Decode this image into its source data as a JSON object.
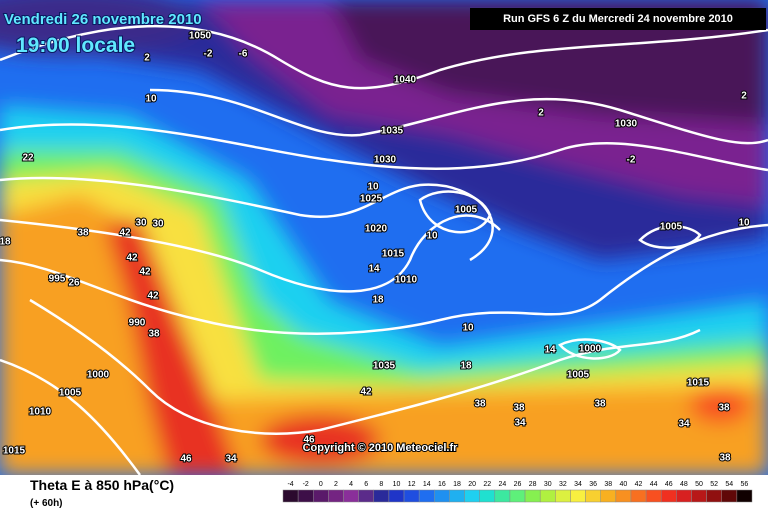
{
  "header": {
    "date": "Vendredi 26 novembre 2010",
    "time": "19:00 locale"
  },
  "run": "Run GFS 6 Z du Mercredi 24 novembre 2010",
  "copyright": "Copyright © 2010 Meteociel.fr",
  "footer": {
    "title": "Theta E à 850 hPa(°C)",
    "lead": "(+ 60h)"
  },
  "scale": {
    "values": [
      -4,
      -2,
      0,
      2,
      4,
      6,
      8,
      10,
      12,
      14,
      16,
      18,
      20,
      22,
      24,
      26,
      28,
      30,
      32,
      34,
      36,
      38,
      40,
      42,
      44,
      46,
      48,
      50,
      52,
      54,
      56
    ],
    "colors": [
      "#2b0a2e",
      "#3d0f48",
      "#5a1a6a",
      "#742482",
      "#8a2f9a",
      "#5b2b8a",
      "#2a2a9a",
      "#1f35c8",
      "#1f4ee0",
      "#1f6ef0",
      "#1f90f0",
      "#1fb0f0",
      "#1fd0f0",
      "#1fe0d0",
      "#3ce8a0",
      "#5ef07a",
      "#86f050",
      "#b0f040",
      "#dcf040",
      "#f8f040",
      "#f8d030",
      "#f8b020",
      "#f89020",
      "#f87020",
      "#f85020",
      "#f03020",
      "#d82020",
      "#b81818",
      "#901010",
      "#600808",
      "#100000"
    ]
  },
  "pressure_labels": [
    1040,
    1035,
    1030,
    1025,
    1020,
    1015,
    1010,
    1005,
    1030,
    1005,
    1000,
    1005,
    1015,
    1000,
    1005,
    1010,
    1015,
    995,
    990,
    1050,
    1035
  ],
  "theta_labels": [
    -2,
    -6,
    2,
    10,
    22,
    18,
    26,
    38,
    42,
    30,
    30,
    42,
    42,
    42,
    38,
    10,
    10,
    14,
    18,
    10,
    18,
    2,
    2,
    -2,
    10,
    42,
    38,
    38,
    38,
    34,
    34,
    38,
    46,
    46,
    34,
    38,
    14
  ]
}
